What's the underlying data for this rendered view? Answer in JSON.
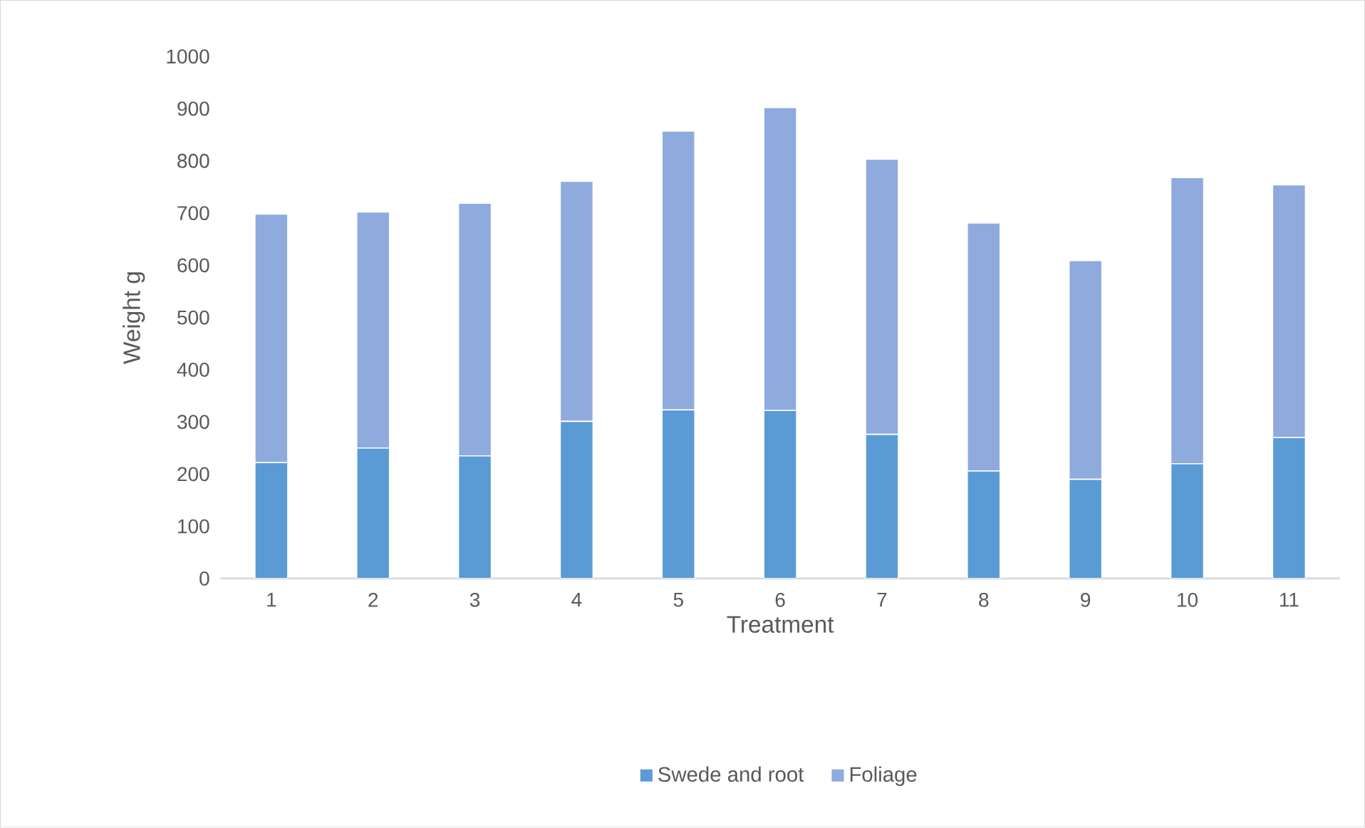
{
  "chart_data": {
    "type": "bar",
    "stacked": true,
    "xlabel": "Treatment",
    "ylabel": "Weight g",
    "categories": [
      "1",
      "2",
      "3",
      "4",
      "5",
      "6",
      "7",
      "8",
      "9",
      "10",
      "11"
    ],
    "series": [
      {
        "name": "Swede and root",
        "color": "#5b9bd5",
        "values": [
          222,
          250,
          235,
          301,
          323,
          322,
          276,
          206,
          190,
          220,
          270
        ]
      },
      {
        "name": "Foliage",
        "color": "#8faadc",
        "values": [
          476,
          452,
          484,
          460,
          534,
          580,
          527,
          475,
          419,
          548,
          484
        ]
      }
    ],
    "ylim": [
      0,
      1000
    ],
    "yticks": [
      0,
      100,
      200,
      300,
      400,
      500,
      600,
      700,
      800,
      900,
      1000
    ],
    "legend": "bottom"
  }
}
